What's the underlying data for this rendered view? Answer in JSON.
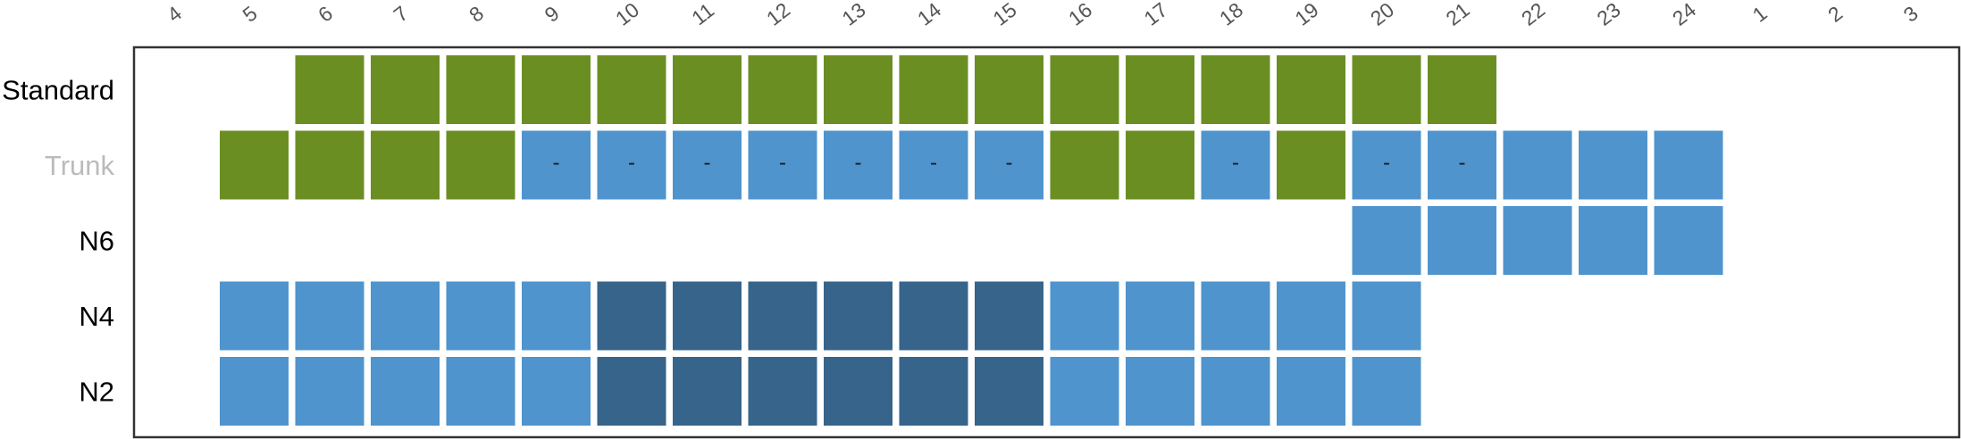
{
  "chart_data": {
    "type": "heatmap",
    "columns": [
      "4",
      "5",
      "6",
      "7",
      "8",
      "9",
      "10",
      "11",
      "12",
      "13",
      "14",
      "15",
      "16",
      "17",
      "18",
      "19",
      "20",
      "21",
      "22",
      "23",
      "24",
      "1",
      "2",
      "3"
    ],
    "rows": [
      {
        "label": "Standard",
        "label_color": "#000000",
        "cells": [
          null,
          null,
          "green",
          "green",
          "green",
          "green",
          "green",
          "green",
          "green",
          "green",
          "green",
          "green",
          "green",
          "green",
          "green",
          "green",
          "green",
          "green",
          null,
          null,
          null,
          null,
          null,
          null
        ],
        "cell_text": [
          "",
          "",
          "",
          "",
          "",
          "",
          "",
          "",
          "",
          "",
          "",
          "",
          "",
          "",
          "",
          "",
          "",
          "",
          "",
          "",
          "",
          "",
          "",
          ""
        ]
      },
      {
        "label": "Trunk",
        "label_color": "#bbbbbb",
        "cells": [
          null,
          "green",
          "green",
          "green",
          "green",
          "blue",
          "blue",
          "blue",
          "blue",
          "blue",
          "blue",
          "blue",
          "green",
          "green",
          "blue",
          "green",
          "blue",
          "blue",
          "blue",
          "blue",
          "blue",
          null,
          null,
          null
        ],
        "cell_text": [
          "",
          "",
          "",
          "",
          "",
          "-",
          "-",
          "-",
          "-",
          "-",
          "-",
          "-",
          "",
          "",
          "-",
          "",
          "-",
          "-",
          "",
          "",
          "",
          "",
          "",
          ""
        ]
      },
      {
        "label": "N6",
        "label_color": "#000000",
        "cells": [
          null,
          null,
          null,
          null,
          null,
          null,
          null,
          null,
          null,
          null,
          null,
          null,
          null,
          null,
          null,
          null,
          "blue",
          "blue",
          "blue",
          "blue",
          "blue",
          null,
          null,
          null
        ],
        "cell_text": [
          "",
          "",
          "",
          "",
          "",
          "",
          "",
          "",
          "",
          "",
          "",
          "",
          "",
          "",
          "",
          "",
          "",
          "",
          "",
          "",
          "",
          "",
          "",
          ""
        ]
      },
      {
        "label": "N4",
        "label_color": "#000000",
        "cells": [
          null,
          "blue",
          "blue",
          "blue",
          "blue",
          "blue",
          "dark",
          "dark",
          "dark",
          "dark",
          "dark",
          "dark",
          "blue",
          "blue",
          "blue",
          "blue",
          "blue",
          null,
          null,
          null,
          null,
          null,
          null,
          null
        ],
        "cell_text": [
          "",
          "",
          "",
          "",
          "",
          "",
          "",
          "",
          "",
          "",
          "",
          "",
          "",
          "",
          "",
          "",
          "",
          "",
          "",
          "",
          "",
          "",
          "",
          ""
        ]
      },
      {
        "label": "N2",
        "label_color": "#000000",
        "cells": [
          null,
          "blue",
          "blue",
          "blue",
          "blue",
          "blue",
          "dark",
          "dark",
          "dark",
          "dark",
          "dark",
          "dark",
          "blue",
          "blue",
          "blue",
          "blue",
          "blue",
          null,
          null,
          null,
          null,
          null,
          null,
          null
        ],
        "cell_text": [
          "",
          "",
          "",
          "",
          "",
          "",
          "",
          "",
          "",
          "",
          "",
          "",
          "",
          "",
          "",
          "",
          "",
          "",
          "",
          "",
          "",
          "",
          "",
          ""
        ]
      }
    ],
    "colors": {
      "green": "#6b8e23",
      "blue": "#4f94cd",
      "dark": "#36648b",
      "border": "#333333"
    }
  }
}
